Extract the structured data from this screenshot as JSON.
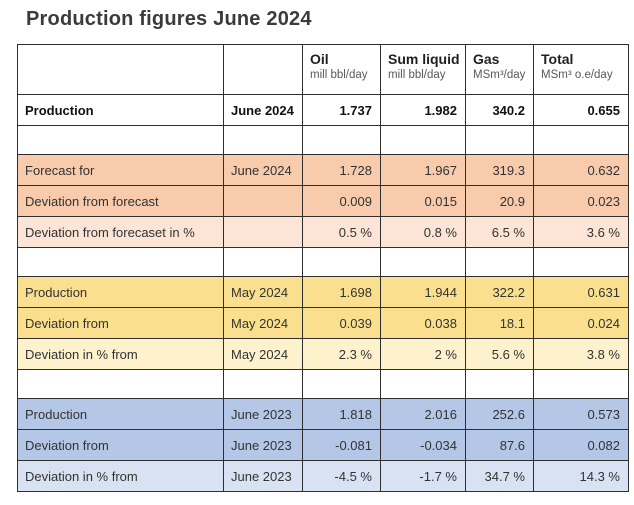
{
  "page_title": "Production figures June 2024",
  "colors": {
    "orange": "#F8CBAD",
    "orange_light": "#FCE4D6",
    "yellow": "#FAE08E",
    "yellow_light": "#FDF2CC",
    "blue": "#B4C7E7",
    "blue_light": "#D9E2F2",
    "border": "#2e2e2e",
    "title_text": "#3b3b3b",
    "unit_text": "#595959"
  },
  "table": {
    "columns": [
      {
        "key": "label",
        "name": "",
        "unit": ""
      },
      {
        "key": "period",
        "name": "",
        "unit": ""
      },
      {
        "key": "oil",
        "name": "Oil",
        "unit": "mill bbl/day"
      },
      {
        "key": "sum-liquid",
        "name": "Sum liquid",
        "unit": "mill bbl/day"
      },
      {
        "key": "gas",
        "name": "Gas",
        "unit": "MSm³/day"
      },
      {
        "key": "total",
        "name": "Total",
        "unit": "MSm³ o.e/day"
      }
    ],
    "rows": [
      {
        "type": "data",
        "style": "plain",
        "bold": true,
        "label": "Production",
        "period": "June 2024",
        "values": [
          "1.737",
          "1.982",
          "340.2",
          "0.655"
        ]
      },
      {
        "type": "spacer"
      },
      {
        "type": "data",
        "style": "orange",
        "bold": false,
        "label": "Forecast for",
        "period": "June 2024",
        "values": [
          "1.728",
          "1.967",
          "319.3",
          "0.632"
        ]
      },
      {
        "type": "data",
        "style": "orange",
        "bold": false,
        "label": "Deviation from forecast",
        "period": "",
        "values": [
          "0.009",
          "0.015",
          "20.9",
          "0.023"
        ]
      },
      {
        "type": "data",
        "style": "orange-light",
        "bold": false,
        "label": "Deviation from forecaset in %",
        "period": "",
        "values": [
          "0.5 %",
          "0.8 %",
          "6.5 %",
          "3.6 %"
        ]
      },
      {
        "type": "spacer"
      },
      {
        "type": "data",
        "style": "yellow",
        "bold": false,
        "label": "Production",
        "period": "May 2024",
        "values": [
          "1.698",
          "1.944",
          "322.2",
          "0.631"
        ]
      },
      {
        "type": "data",
        "style": "yellow",
        "bold": false,
        "label": "Deviation from",
        "period": "May 2024",
        "values": [
          "0.039",
          "0.038",
          "18.1",
          "0.024"
        ]
      },
      {
        "type": "data",
        "style": "yellow-light",
        "bold": false,
        "label": "Deviation in % from",
        "period": "May 2024",
        "values": [
          "2.3 %",
          "2 %",
          "5.6 %",
          "3.8 %"
        ]
      },
      {
        "type": "spacer"
      },
      {
        "type": "data",
        "style": "blue",
        "bold": false,
        "label": "Production",
        "period": "June 2023",
        "values": [
          "1.818",
          "2.016",
          "252.6",
          "0.573"
        ]
      },
      {
        "type": "data",
        "style": "blue",
        "bold": false,
        "label": "Deviation from",
        "period": "June 2023",
        "values": [
          "-0.081",
          "-0.034",
          "87.6",
          "0.082"
        ]
      },
      {
        "type": "data",
        "style": "blue-light",
        "bold": false,
        "label": "Deviation in % from",
        "period": "June 2023",
        "values": [
          "-4.5 %",
          "-1.7 %",
          "34.7 %",
          "14.3 %"
        ]
      }
    ]
  }
}
